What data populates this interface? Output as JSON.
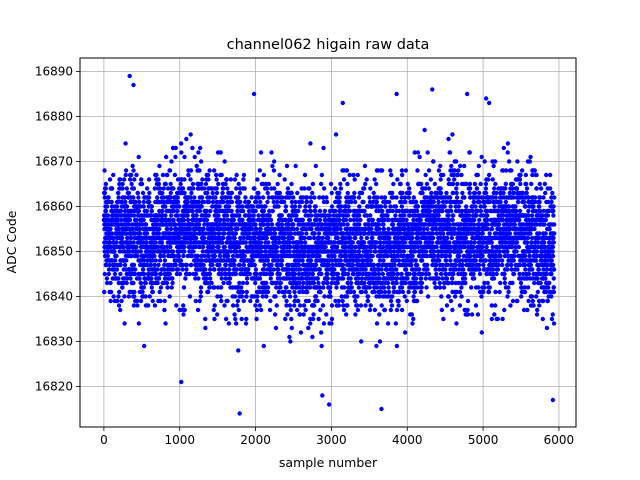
{
  "chart_data": {
    "type": "scatter",
    "title": "channel062 higain raw data",
    "xlabel": "sample number",
    "ylabel": "ADC Code",
    "xlim": [
      -315,
      6225
    ],
    "ylim": [
      16811,
      16893
    ],
    "xticks": [
      0,
      1000,
      2000,
      3000,
      4000,
      5000,
      6000
    ],
    "xtick_labels": [
      "0",
      "1000",
      "2000",
      "3000",
      "4000",
      "5000",
      "6000"
    ],
    "yticks": [
      16820,
      16830,
      16840,
      16850,
      16860,
      16870,
      16880,
      16890
    ],
    "ytick_labels": [
      "16820",
      "16830",
      "16840",
      "16850",
      "16860",
      "16870",
      "16880",
      "16890"
    ],
    "grid": true,
    "marker_color": "#0000ff",
    "marker": "circle",
    "n_points": 5940,
    "baseline_mean": 16852,
    "noise_spread": 7,
    "notable_points": [
      {
        "x": 340,
        "y": 16889
      },
      {
        "x": 390,
        "y": 16887
      },
      {
        "x": 4330,
        "y": 16886
      },
      {
        "x": 1980,
        "y": 16885
      },
      {
        "x": 3860,
        "y": 16885
      },
      {
        "x": 4790,
        "y": 16885
      },
      {
        "x": 5040,
        "y": 16884
      },
      {
        "x": 3150,
        "y": 16883
      },
      {
        "x": 1790,
        "y": 16814
      },
      {
        "x": 3660,
        "y": 16815
      },
      {
        "x": 2970,
        "y": 16816
      },
      {
        "x": 5920,
        "y": 16817
      },
      {
        "x": 2880,
        "y": 16818
      },
      {
        "x": 1020,
        "y": 16821
      }
    ]
  }
}
